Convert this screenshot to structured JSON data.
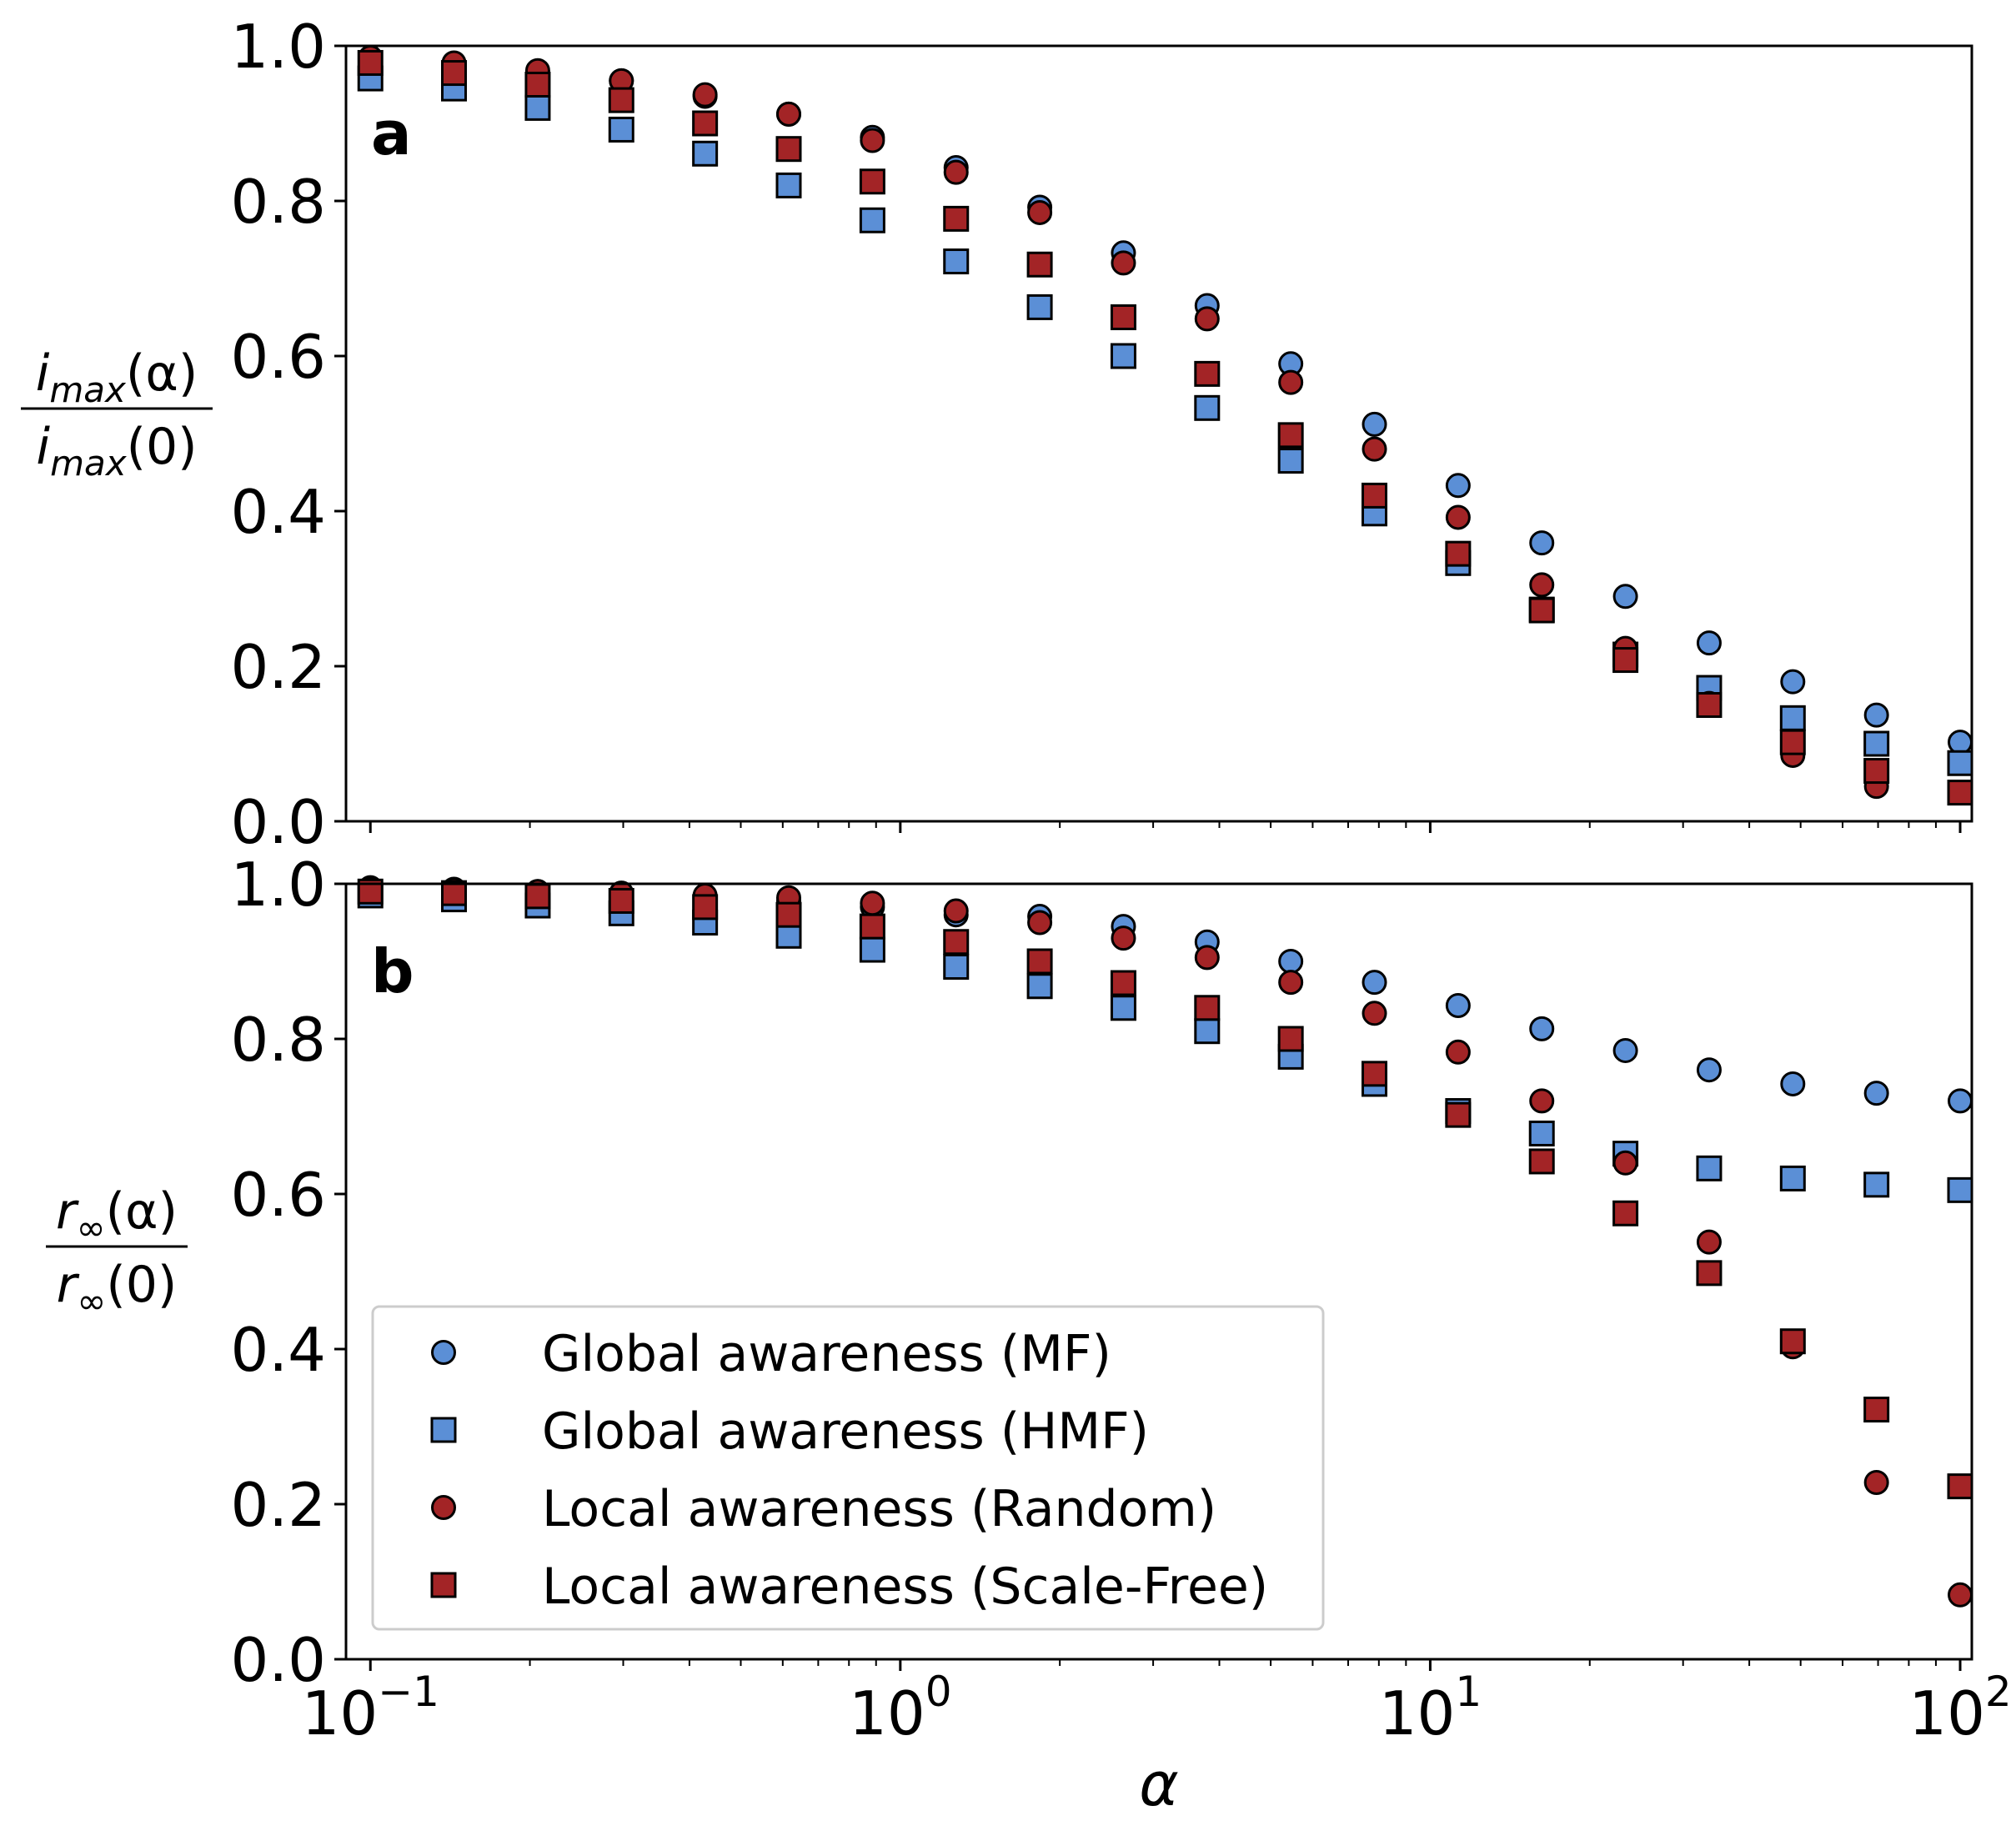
{
  "colors": {
    "global": "#5b8fd6",
    "local": "#a32426",
    "marker_edge": "#000000",
    "axis": "#000000",
    "legend_edge": "#cccccc"
  },
  "chart_data": [
    {
      "type": "scatter",
      "panel_label": "a",
      "ylabel": {
        "numerator": "imax(α)",
        "denominator": "imax(0)",
        "num_base": "i",
        "num_sub": "max",
        "num_arg": "(α)",
        "den_base": "i",
        "den_sub": "max",
        "den_arg": "(0)"
      },
      "xscale": "log",
      "xlim": [
        0.1,
        100
      ],
      "ylim": [
        0.0,
        1.0
      ],
      "yticks": [
        "0.0",
        "0.2",
        "0.4",
        "0.6",
        "0.8",
        "1.0"
      ],
      "x": [
        0.1,
        0.1438,
        0.2069,
        0.2976,
        0.4281,
        0.6158,
        0.8859,
        1.2743,
        1.833,
        2.6367,
        3.7927,
        5.4556,
        7.8476,
        11.2884,
        16.2378,
        23.3572,
        33.5982,
        48.3293,
        69.5193,
        100.0
      ],
      "series": [
        {
          "name": "Global awareness (MF)",
          "marker": "circle",
          "color_key": "global",
          "values": [
            0.985,
            0.975,
            0.965,
            0.955,
            0.935,
            0.912,
            0.882,
            0.843,
            0.792,
            0.733,
            0.665,
            0.59,
            0.512,
            0.433,
            0.359,
            0.29,
            0.23,
            0.18,
            0.137,
            0.102
          ]
        },
        {
          "name": "Global awareness (HMF)",
          "marker": "square",
          "color_key": "global",
          "values": [
            0.958,
            0.945,
            0.92,
            0.892,
            0.861,
            0.82,
            0.775,
            0.722,
            0.663,
            0.6,
            0.533,
            0.465,
            0.397,
            0.333,
            0.273,
            0.215,
            0.172,
            0.133,
            0.1,
            0.075
          ]
        },
        {
          "name": "Local awareness (Random)",
          "marker": "circle",
          "color_key": "local",
          "values": [
            0.985,
            0.978,
            0.968,
            0.955,
            0.937,
            0.912,
            0.878,
            0.837,
            0.785,
            0.72,
            0.648,
            0.566,
            0.48,
            0.392,
            0.305,
            0.223,
            0.152,
            0.085,
            0.045,
            0.037
          ]
        },
        {
          "name": "Local awareness (Scale-Free)",
          "marker": "square",
          "color_key": "local",
          "values": [
            0.978,
            0.965,
            0.95,
            0.93,
            0.9,
            0.867,
            0.825,
            0.777,
            0.718,
            0.65,
            0.577,
            0.498,
            0.42,
            0.345,
            0.272,
            0.208,
            0.15,
            0.102,
            0.065,
            0.037
          ]
        }
      ]
    },
    {
      "type": "scatter",
      "panel_label": "b",
      "ylabel": {
        "numerator": "r∞(α)",
        "denominator": "r∞(0)",
        "num_base": "r",
        "num_sub": "∞",
        "num_arg": "(α)",
        "den_base": "r",
        "den_sub": "∞",
        "den_arg": "(0)"
      },
      "xlabel": "α",
      "xscale": "log",
      "xlim": [
        0.1,
        100
      ],
      "ylim": [
        0.0,
        1.0
      ],
      "yticks": [
        "0.0",
        "0.2",
        "0.4",
        "0.6",
        "0.8",
        "1.0"
      ],
      "xticks": [
        {
          "base": "10",
          "exp": "−1"
        },
        {
          "base": "10",
          "exp": "0"
        },
        {
          "base": "10",
          "exp": "1"
        },
        {
          "base": "10",
          "exp": "2"
        }
      ],
      "x": [
        0.1,
        0.1438,
        0.2069,
        0.2976,
        0.4281,
        0.6158,
        0.8859,
        1.2743,
        1.833,
        2.6367,
        3.7927,
        5.4556,
        7.8476,
        11.2884,
        16.2378,
        23.3572,
        33.5982,
        48.3293,
        69.5193,
        100.0
      ],
      "series": [
        {
          "name": "Global awareness (MF)",
          "marker": "circle",
          "color_key": "global",
          "values": [
            0.995,
            0.993,
            0.99,
            0.987,
            0.983,
            0.978,
            0.97,
            0.96,
            0.958,
            0.945,
            0.925,
            0.9,
            0.873,
            0.843,
            0.813,
            0.785,
            0.76,
            0.742,
            0.73,
            0.72
          ]
        },
        {
          "name": "Global awareness (HMF)",
          "marker": "square",
          "color_key": "global",
          "values": [
            0.985,
            0.98,
            0.972,
            0.962,
            0.95,
            0.933,
            0.915,
            0.893,
            0.868,
            0.84,
            0.81,
            0.777,
            0.742,
            0.707,
            0.678,
            0.652,
            0.633,
            0.62,
            0.612,
            0.605
          ]
        },
        {
          "name": "Local awareness (Random)",
          "marker": "circle",
          "color_key": "local",
          "values": [
            0.993,
            0.992,
            0.99,
            0.988,
            0.985,
            0.982,
            0.975,
            0.965,
            0.95,
            0.93,
            0.905,
            0.873,
            0.833,
            0.783,
            0.72,
            0.64,
            0.538,
            0.403,
            0.228,
            0.083
          ]
        },
        {
          "name": "Local awareness (Scale-Free)",
          "marker": "square",
          "color_key": "local",
          "values": [
            0.99,
            0.988,
            0.984,
            0.978,
            0.97,
            0.96,
            0.945,
            0.925,
            0.9,
            0.872,
            0.84,
            0.8,
            0.755,
            0.702,
            0.642,
            0.575,
            0.498,
            0.41,
            0.322,
            0.223
          ]
        }
      ],
      "legend": {
        "location": "lower-left",
        "entries": [
          {
            "label": "Global awareness (MF)",
            "marker": "circle",
            "color_key": "global"
          },
          {
            "label": "Global awareness (HMF)",
            "marker": "square",
            "color_key": "global"
          },
          {
            "label": "Local awareness (Random)",
            "marker": "circle",
            "color_key": "local"
          },
          {
            "label": "Local awareness (Scale-Free)",
            "marker": "square",
            "color_key": "local"
          }
        ]
      }
    }
  ]
}
